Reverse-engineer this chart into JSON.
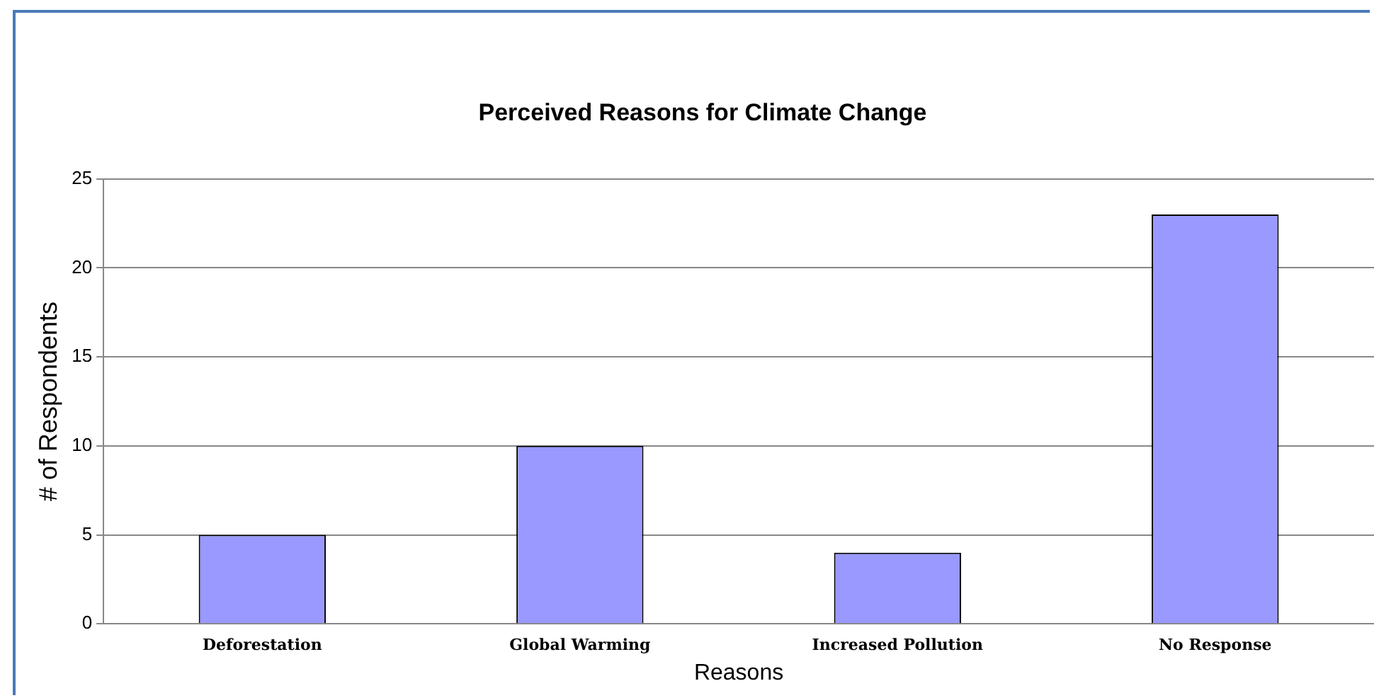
{
  "chart_data": {
    "type": "bar",
    "title": "Perceived Reasons for Climate Change",
    "xlabel": "Reasons",
    "ylabel": "# of Respondents",
    "categories": [
      "Deforestation",
      "Global Warming",
      "Increased Pollution",
      "No Response"
    ],
    "values": [
      5,
      10,
      4,
      23
    ],
    "color": "#9999ff",
    "ylim": [
      0,
      25
    ],
    "yticks": [
      0,
      5,
      10,
      15,
      20,
      25
    ],
    "grid": "y",
    "legend": false
  }
}
